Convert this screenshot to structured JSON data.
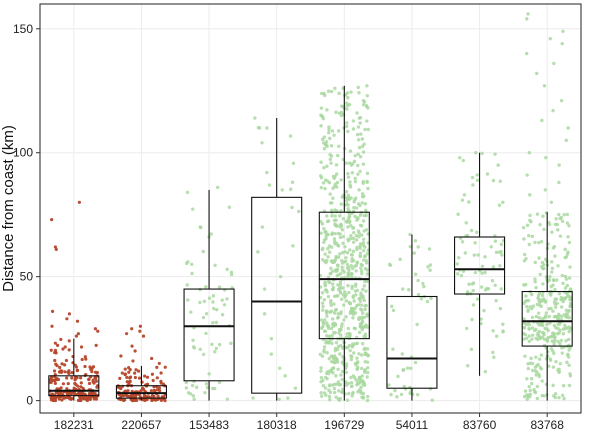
{
  "chart_data": {
    "type": "boxplot",
    "ylabel": "Distance from coast (km)",
    "xlabel": "",
    "ylim": [
      -5,
      160
    ],
    "yticks": [
      0,
      50,
      100,
      150
    ],
    "categories": [
      "182231",
      "220657",
      "153483",
      "180318",
      "196729",
      "54011",
      "83760",
      "83768"
    ],
    "grid": true,
    "legend": "none",
    "colors": {
      "red_points": "#b5462a",
      "green_points": "#a9d8a0",
      "box_stroke": "#111111",
      "grid": "#ececec",
      "panel_border": "#222222"
    },
    "boxes": [
      {
        "category": "182231",
        "color": "red",
        "min": 0,
        "q1": 2,
        "median": 4,
        "q3": 10,
        "max": 25,
        "points_n": 220
      },
      {
        "category": "220657",
        "color": "red",
        "min": 0,
        "q1": 1,
        "median": 3,
        "q3": 6,
        "max": 14,
        "points_n": 140
      },
      {
        "category": "153483",
        "color": "green",
        "min": 0,
        "q1": 8,
        "median": 30,
        "q3": 45,
        "max": 85,
        "points_n": 65
      },
      {
        "category": "180318",
        "color": "green",
        "min": 0,
        "q1": 3,
        "median": 40,
        "q3": 82,
        "max": 114,
        "points_n": 14
      },
      {
        "category": "196729",
        "color": "green",
        "min": 0,
        "q1": 25,
        "median": 49,
        "q3": 76,
        "max": 127,
        "points_n": 750
      },
      {
        "category": "54011",
        "color": "green",
        "min": 0,
        "q1": 5,
        "median": 17,
        "q3": 42,
        "max": 67,
        "points_n": 45
      },
      {
        "category": "83760",
        "color": "green",
        "min": 10,
        "q1": 43,
        "median": 53,
        "q3": 66,
        "max": 100,
        "points_n": 80
      },
      {
        "category": "83768",
        "color": "green",
        "min": 0,
        "q1": 22,
        "median": 32,
        "q3": 44,
        "max": 76,
        "points_n": 360
      }
    ],
    "outliers": [
      {
        "category": "182231",
        "values": [
          80,
          73,
          62,
          61,
          36,
          35,
          33,
          32,
          30,
          29,
          28,
          27,
          26
        ]
      },
      {
        "category": "220657",
        "values": [
          30,
          29,
          28,
          27,
          26,
          22,
          20,
          18,
          17,
          16,
          15
        ]
      },
      {
        "category": "153483",
        "values": [
          86,
          84,
          78,
          70,
          66
        ]
      },
      {
        "category": "180318",
        "values": [
          114,
          110,
          104,
          92,
          85,
          70,
          60,
          50,
          45,
          35,
          25,
          10,
          5,
          1
        ]
      },
      {
        "category": "196729",
        "values": [
          127,
          126,
          123,
          121,
          118,
          116,
          115,
          112,
          110
        ]
      },
      {
        "category": "54011",
        "values": [
          67,
          62,
          57,
          51,
          45
        ]
      },
      {
        "category": "83760",
        "values": [
          100,
          98,
          95,
          90,
          87,
          83,
          80
        ]
      },
      {
        "category": "83768",
        "values": [
          156,
          154,
          149,
          146,
          144,
          140,
          136,
          132,
          127,
          121,
          117,
          113,
          110,
          105,
          100,
          98,
          95,
          91,
          88,
          85,
          83,
          80
        ]
      }
    ]
  }
}
